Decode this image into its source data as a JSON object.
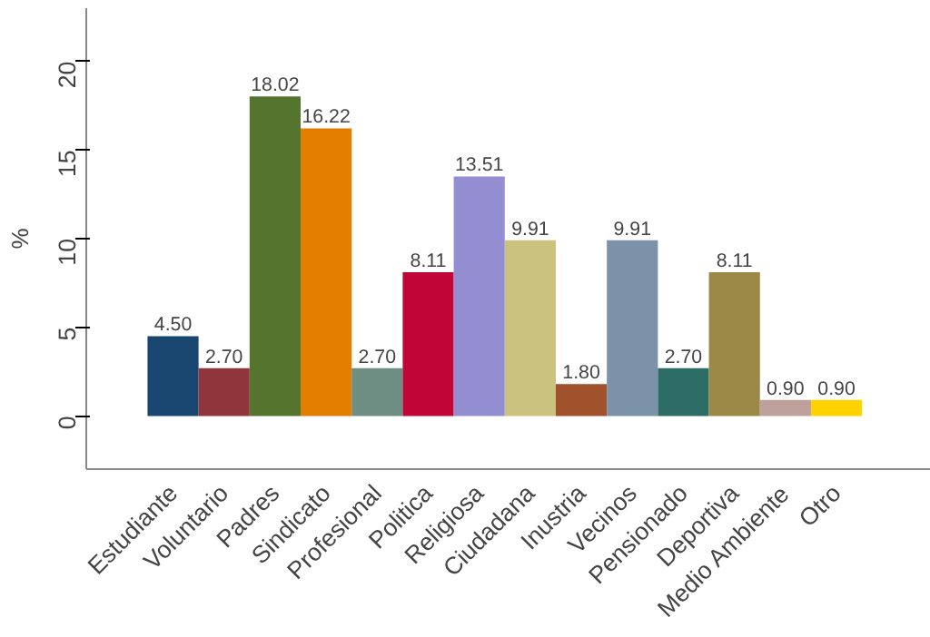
{
  "chart_data": {
    "type": "bar",
    "ylabel": "%",
    "categories": [
      "Estudiante",
      "Voluntario",
      "Padres",
      "Sindicato",
      "Profesional",
      "Politica",
      "Religiosa",
      "Ciudadana",
      "Inustria",
      "Vecinos",
      "Pensionado",
      "Deportiva",
      "Medio Ambiente",
      "Otro"
    ],
    "values": [
      4.5,
      2.7,
      18.02,
      16.22,
      2.7,
      8.11,
      13.51,
      9.91,
      1.8,
      9.91,
      2.7,
      8.11,
      0.9,
      0.9
    ],
    "colors": [
      "#1a476f",
      "#90353b",
      "#55752f",
      "#e37e00",
      "#6e8e84",
      "#c10534",
      "#938dd2",
      "#cac27e",
      "#a0522d",
      "#7b92a8",
      "#2d6d66",
      "#9c8847",
      "#bfa19c",
      "#ffd200"
    ],
    "value_labels": [
      "4.50",
      "2.70",
      "18.02",
      "16.22",
      "2.70",
      "8.11",
      "13.51",
      "9.91",
      "1.80",
      "9.91",
      "2.70",
      "8.11",
      "0.90",
      "0.90"
    ],
    "ylim": [
      -3,
      23
    ],
    "yticks": [
      0,
      5,
      10,
      15,
      20
    ],
    "grid": false
  }
}
